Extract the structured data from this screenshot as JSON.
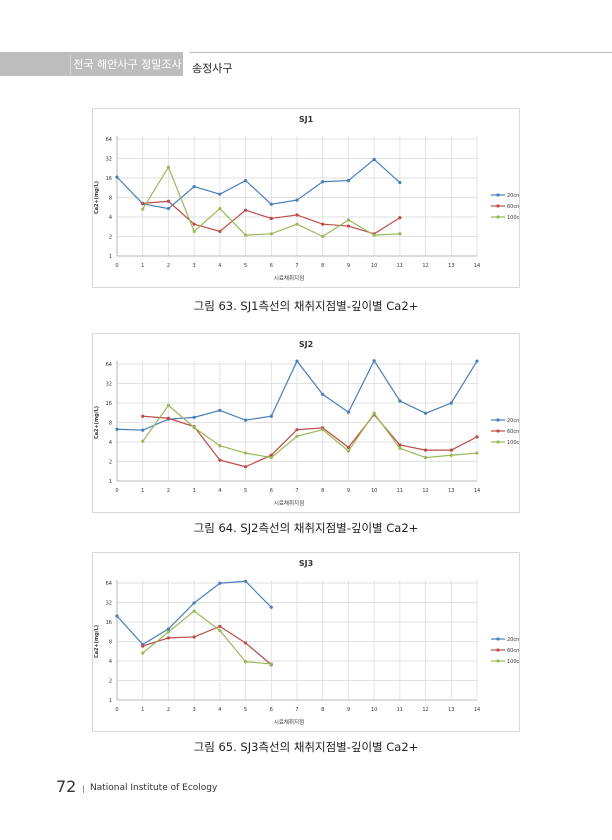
{
  "header": {
    "section": "전국 해안사구 정밀조사",
    "subsection": "송정사구"
  },
  "footer": {
    "page_number": "72",
    "publisher": "National Institute of Ecology"
  },
  "colors": {
    "20cm": "#4a7ebb",
    "60cm": "#be4b48",
    "100cm": "#98b954"
  },
  "chart_data": [
    {
      "type": "line",
      "title": "SJ1",
      "xlabel": "시료채취지점",
      "ylabel": "Ca2+(mg/L)",
      "caption": "그림 63. SJ1측선의 채취지점별-깊이별 Ca2+",
      "xlim": [
        0,
        14
      ],
      "ylim": [
        1,
        64
      ],
      "yscale": "log2",
      "xticks": [
        "0",
        "1",
        "2",
        "3",
        "4",
        "5",
        "6",
        "7",
        "8",
        "9",
        "10",
        "11",
        "12",
        "13",
        "14"
      ],
      "yticks": [
        "1",
        "2",
        "4",
        "8",
        "16",
        "32",
        "64"
      ],
      "grid": true,
      "legend": "right",
      "series": [
        {
          "name": "20cm",
          "x": [
            0,
            1,
            2,
            3,
            4,
            5,
            6,
            7,
            8,
            9,
            10,
            11
          ],
          "values": [
            16.5,
            6.4,
            5.4,
            11.8,
            9.0,
            14.6,
            6.3,
            7.3,
            14.0,
            14.6,
            31,
            13.6
          ]
        },
        {
          "name": "60cm",
          "x": [
            1,
            2,
            3,
            4,
            5,
            6,
            7,
            8,
            9,
            10,
            11
          ],
          "values": [
            6.5,
            7.0,
            3.1,
            2.4,
            5.1,
            3.8,
            4.3,
            3.1,
            2.9,
            2.2,
            3.9
          ]
        },
        {
          "name": "100cm",
          "x": [
            1,
            2,
            3,
            4,
            5,
            6,
            7,
            8,
            9,
            10,
            11
          ],
          "values": [
            5.3,
            23.5,
            2.4,
            5.4,
            2.1,
            2.2,
            3.1,
            2.0,
            3.6,
            2.1,
            2.2
          ]
        }
      ]
    },
    {
      "type": "line",
      "title": "SJ2",
      "xlabel": "시료채취지점",
      "ylabel": "Ca2+(mg/L)",
      "caption": "그림 64. SJ2측선의 채취지점별-깊이별 Ca2+",
      "xlim": [
        0,
        14
      ],
      "ylim": [
        1,
        64
      ],
      "yscale": "log2",
      "xticks": [
        "0",
        "1",
        "2",
        "3",
        "4",
        "5",
        "6",
        "7",
        "8",
        "9",
        "10",
        "11",
        "12",
        "13",
        "14"
      ],
      "yticks": [
        "1",
        "2",
        "4",
        "8",
        "16",
        "32",
        "64"
      ],
      "grid": true,
      "legend": "right",
      "series": [
        {
          "name": "20cm",
          "x": [
            0,
            1,
            2,
            3,
            4,
            5,
            6,
            7,
            8,
            9,
            10,
            11,
            12,
            13,
            14
          ],
          "values": [
            6.3,
            6.1,
            9.0,
            9.6,
            12.3,
            8.7,
            10,
            71,
            21.7,
            11.5,
            72,
            17.2,
            11.1,
            16,
            71
          ]
        },
        {
          "name": "60cm",
          "x": [
            1,
            2,
            3,
            4,
            5,
            6,
            7,
            8,
            9,
            10,
            11,
            12,
            13,
            14
          ],
          "values": [
            10,
            9.3,
            6.9,
            2.1,
            1.66,
            2.5,
            6.2,
            6.6,
            3.3,
            10.6,
            3.6,
            3.0,
            3.0,
            4.8
          ]
        },
        {
          "name": "100cm",
          "x": [
            1,
            2,
            3,
            4,
            5,
            6,
            7,
            8,
            9,
            10,
            11,
            12,
            13,
            14
          ],
          "values": [
            4.1,
            14.7,
            6.7,
            3.5,
            2.7,
            2.3,
            4.9,
            6.2,
            2.9,
            11.1,
            3.2,
            2.3,
            2.5,
            2.7
          ]
        }
      ]
    },
    {
      "type": "line",
      "title": "SJ3",
      "xlabel": "시료채취지점",
      "ylabel": "Ca2+(mg/L)",
      "caption": "그림 65. SJ3측선의 채취지점별-깊이별 Ca2+",
      "xlim": [
        0,
        14
      ],
      "ylim": [
        1,
        64
      ],
      "yscale": "log2",
      "xticks": [
        "0",
        "1",
        "2",
        "3",
        "4",
        "5",
        "6",
        "7",
        "8",
        "9",
        "10",
        "11",
        "12",
        "13",
        "14"
      ],
      "yticks": [
        "1",
        "2",
        "4",
        "8",
        "16",
        "32",
        "64"
      ],
      "grid": true,
      "legend": "right",
      "series": [
        {
          "name": "20cm",
          "x": [
            0,
            1,
            2,
            3,
            4,
            5,
            6
          ],
          "values": [
            19.8,
            7.2,
            12.5,
            31.5,
            63.5,
            68,
            27
          ]
        },
        {
          "name": "60cm",
          "x": [
            1,
            2,
            3,
            4,
            5,
            6
          ],
          "values": [
            6.8,
            9.1,
            9.4,
            13.7,
            7.6,
            3.5
          ]
        },
        {
          "name": "100cm",
          "x": [
            1,
            2,
            3,
            4,
            5,
            6
          ],
          "values": [
            5.3,
            11.2,
            23.6,
            11.8,
            3.9,
            3.6
          ]
        }
      ]
    }
  ]
}
